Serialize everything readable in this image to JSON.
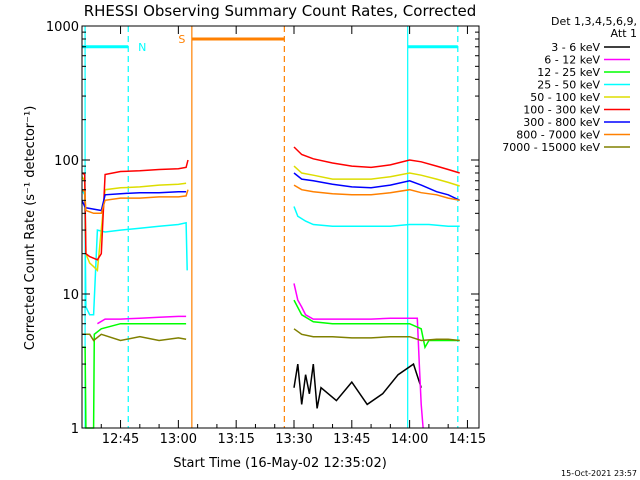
{
  "chart_data": {
    "type": "line",
    "title": "RHESSI Observing Summary Count Rates, Corrected",
    "xlabel": "Start Time (16-May-02 12:35:02)",
    "ylabel": "Corrected Count Rate (s⁻¹ detector⁻¹)",
    "xlim": [
      0,
      103
    ],
    "ylim": [
      1,
      1000
    ],
    "yscale": "log",
    "x_ticks": [
      {
        "v": 10,
        "label": "12:45"
      },
      {
        "v": 25,
        "label": "13:00"
      },
      {
        "v": 40,
        "label": "13:15"
      },
      {
        "v": 55,
        "label": "13:30"
      },
      {
        "v": 70,
        "label": "13:45"
      },
      {
        "v": 85,
        "label": "14:00"
      },
      {
        "v": 100,
        "label": "14:15"
      }
    ],
    "y_ticks": [
      {
        "v": 1,
        "label": "1"
      },
      {
        "v": 10,
        "label": "10"
      },
      {
        "v": 100,
        "label": "100"
      },
      {
        "v": 1000,
        "label": "1000"
      }
    ],
    "legend": {
      "placement": "right",
      "header": [
        "Det 1,3,4,5,6,9,",
        "Att 1"
      ]
    },
    "series": [
      {
        "name": "3 - 6 keV",
        "color": "#000000",
        "points": [
          [
            55,
            2
          ],
          [
            56,
            3
          ],
          [
            57,
            1.5
          ],
          [
            58,
            2.5
          ],
          [
            59,
            1.8
          ],
          [
            60,
            3
          ],
          [
            61,
            1.4
          ],
          [
            62,
            2
          ],
          [
            66,
            1.6
          ],
          [
            70,
            2.2
          ],
          [
            74,
            1.5
          ],
          [
            78,
            1.8
          ],
          [
            82,
            2.5
          ],
          [
            86,
            3
          ],
          [
            88,
            2
          ]
        ]
      },
      {
        "name": "6 - 12 keV",
        "color": "#ff00ff",
        "points": [
          [
            4,
            6
          ],
          [
            6,
            6.5
          ],
          [
            10,
            6.5
          ],
          [
            15,
            6.6
          ],
          [
            20,
            6.7
          ],
          [
            25,
            6.8
          ],
          [
            27,
            6.8
          ],
          [
            55,
            12
          ],
          [
            56,
            9
          ],
          [
            57,
            8
          ],
          [
            58,
            7
          ],
          [
            60,
            6.5
          ],
          [
            65,
            6.5
          ],
          [
            70,
            6.5
          ],
          [
            75,
            6.5
          ],
          [
            80,
            6.6
          ],
          [
            85,
            6.6
          ],
          [
            87,
            6.6
          ],
          [
            87.5,
            3
          ],
          [
            88,
            1.5
          ],
          [
            88.5,
            1
          ]
        ]
      },
      {
        "name": "12 - 25 keV",
        "color": "#00ff00",
        "points": [
          [
            0,
            4
          ],
          [
            0.8,
            4
          ],
          [
            1,
            1
          ],
          [
            3,
            1
          ],
          [
            3.2,
            5
          ],
          [
            5,
            5.5
          ],
          [
            10,
            6
          ],
          [
            15,
            6
          ],
          [
            20,
            6
          ],
          [
            25,
            6
          ],
          [
            27,
            6
          ],
          [
            55,
            9
          ],
          [
            57,
            7
          ],
          [
            60,
            6.2
          ],
          [
            65,
            6
          ],
          [
            70,
            6
          ],
          [
            75,
            6
          ],
          [
            80,
            6
          ],
          [
            85,
            6
          ],
          [
            88,
            5.5
          ],
          [
            89,
            4
          ],
          [
            90,
            4.5
          ],
          [
            95,
            4.5
          ],
          [
            98,
            4.5
          ]
        ]
      },
      {
        "name": "25 - 50 keV",
        "color": "#00ffff",
        "points": [
          [
            0,
            60
          ],
          [
            0.7,
            55
          ],
          [
            1,
            8
          ],
          [
            2,
            7
          ],
          [
            3,
            7
          ],
          [
            4,
            30
          ],
          [
            6,
            29
          ],
          [
            10,
            30
          ],
          [
            15,
            31
          ],
          [
            20,
            32
          ],
          [
            25,
            33
          ],
          [
            27,
            34
          ],
          [
            27.3,
            15
          ],
          [
            55,
            45
          ],
          [
            56,
            38
          ],
          [
            58,
            35
          ],
          [
            60,
            33
          ],
          [
            65,
            32
          ],
          [
            70,
            32
          ],
          [
            75,
            32
          ],
          [
            80,
            32
          ],
          [
            85,
            33
          ],
          [
            90,
            33
          ],
          [
            95,
            32
          ],
          [
            98,
            32
          ]
        ]
      },
      {
        "name": "50 - 100 keV",
        "color": "#dddd00",
        "points": [
          [
            0,
            75
          ],
          [
            0.7,
            70
          ],
          [
            1,
            20
          ],
          [
            2,
            17
          ],
          [
            3,
            16
          ],
          [
            4,
            15
          ],
          [
            6,
            60
          ],
          [
            10,
            62
          ],
          [
            15,
            63
          ],
          [
            20,
            65
          ],
          [
            25,
            66
          ],
          [
            27,
            67
          ],
          [
            55,
            90
          ],
          [
            57,
            80
          ],
          [
            60,
            77
          ],
          [
            65,
            72
          ],
          [
            70,
            72
          ],
          [
            75,
            72
          ],
          [
            80,
            75
          ],
          [
            85,
            80
          ],
          [
            88,
            77
          ],
          [
            92,
            72
          ],
          [
            95,
            68
          ],
          [
            98,
            64
          ]
        ]
      },
      {
        "name": "100 - 300 keV",
        "color": "#ff0000",
        "points": [
          [
            0,
            80
          ],
          [
            0.7,
            78
          ],
          [
            1,
            20
          ],
          [
            2,
            19
          ],
          [
            4,
            18
          ],
          [
            5,
            20
          ],
          [
            6,
            78
          ],
          [
            10,
            82
          ],
          [
            15,
            83
          ],
          [
            20,
            85
          ],
          [
            25,
            86
          ],
          [
            27,
            88
          ],
          [
            27.5,
            100
          ],
          [
            55,
            125
          ],
          [
            57,
            110
          ],
          [
            60,
            102
          ],
          [
            65,
            95
          ],
          [
            70,
            90
          ],
          [
            75,
            88
          ],
          [
            80,
            92
          ],
          [
            85,
            100
          ],
          [
            88,
            97
          ],
          [
            92,
            90
          ],
          [
            95,
            85
          ],
          [
            98,
            80
          ]
        ]
      },
      {
        "name": "300 - 800 keV",
        "color": "#0000ff",
        "points": [
          [
            0,
            50
          ],
          [
            0.7,
            45
          ],
          [
            1,
            44
          ],
          [
            3,
            43
          ],
          [
            5,
            42
          ],
          [
            6,
            55
          ],
          [
            10,
            56
          ],
          [
            15,
            57
          ],
          [
            20,
            57
          ],
          [
            25,
            58
          ],
          [
            27,
            58
          ],
          [
            55,
            80
          ],
          [
            57,
            72
          ],
          [
            60,
            70
          ],
          [
            65,
            66
          ],
          [
            70,
            63
          ],
          [
            75,
            62
          ],
          [
            80,
            65
          ],
          [
            85,
            70
          ],
          [
            88,
            65
          ],
          [
            92,
            58
          ],
          [
            95,
            55
          ],
          [
            98,
            50
          ]
        ]
      },
      {
        "name": "800 - 7000 keV",
        "color": "#ff8000",
        "points": [
          [
            0,
            60
          ],
          [
            0.7,
            58
          ],
          [
            1,
            42
          ],
          [
            3,
            40
          ],
          [
            5,
            40
          ],
          [
            6,
            50
          ],
          [
            10,
            52
          ],
          [
            15,
            52
          ],
          [
            20,
            53
          ],
          [
            25,
            53
          ],
          [
            27,
            54
          ],
          [
            27.5,
            60
          ],
          [
            55,
            65
          ],
          [
            57,
            60
          ],
          [
            60,
            58
          ],
          [
            65,
            56
          ],
          [
            70,
            55
          ],
          [
            75,
            55
          ],
          [
            80,
            57
          ],
          [
            85,
            60
          ],
          [
            88,
            57
          ],
          [
            92,
            55
          ],
          [
            95,
            52
          ],
          [
            98,
            50
          ]
        ]
      },
      {
        "name": "7000 - 15000 keV",
        "color": "#808000",
        "points": [
          [
            0,
            5
          ],
          [
            2,
            5
          ],
          [
            3,
            4.5
          ],
          [
            5,
            5
          ],
          [
            10,
            4.5
          ],
          [
            15,
            4.8
          ],
          [
            20,
            4.5
          ],
          [
            25,
            4.7
          ],
          [
            27,
            4.6
          ],
          [
            55,
            5.5
          ],
          [
            57,
            5
          ],
          [
            60,
            4.8
          ],
          [
            65,
            4.8
          ],
          [
            70,
            4.7
          ],
          [
            75,
            4.7
          ],
          [
            80,
            4.8
          ],
          [
            85,
            4.8
          ],
          [
            88,
            4.5
          ],
          [
            92,
            4.6
          ],
          [
            95,
            4.6
          ],
          [
            98,
            4.5
          ]
        ]
      }
    ],
    "annotations": {
      "night_label": "N",
      "saa_label": "S",
      "vlines": [
        {
          "x": 0.8,
          "color": "#00ffff",
          "style": "solid"
        },
        {
          "x": 12,
          "color": "#00ffff",
          "style": "dashed"
        },
        {
          "x": 84.5,
          "color": "#00ffff",
          "style": "solid"
        },
        {
          "x": 97.5,
          "color": "#00ffff",
          "style": "dashed"
        },
        {
          "x": 28.5,
          "color": "#ff8000",
          "style": "solid"
        },
        {
          "x": 52.5,
          "color": "#ff8000",
          "style": "dashed"
        }
      ],
      "bars": [
        {
          "x0": 0,
          "x1": 12,
          "y": 700,
          "color": "#00ffff"
        },
        {
          "x0": 84.5,
          "x1": 97.5,
          "y": 700,
          "color": "#00ffff"
        },
        {
          "x0": 28.5,
          "x1": 52.5,
          "y": 800,
          "color": "#ff8000"
        }
      ]
    },
    "timestamp": "15-Oct-2021 23:57"
  }
}
